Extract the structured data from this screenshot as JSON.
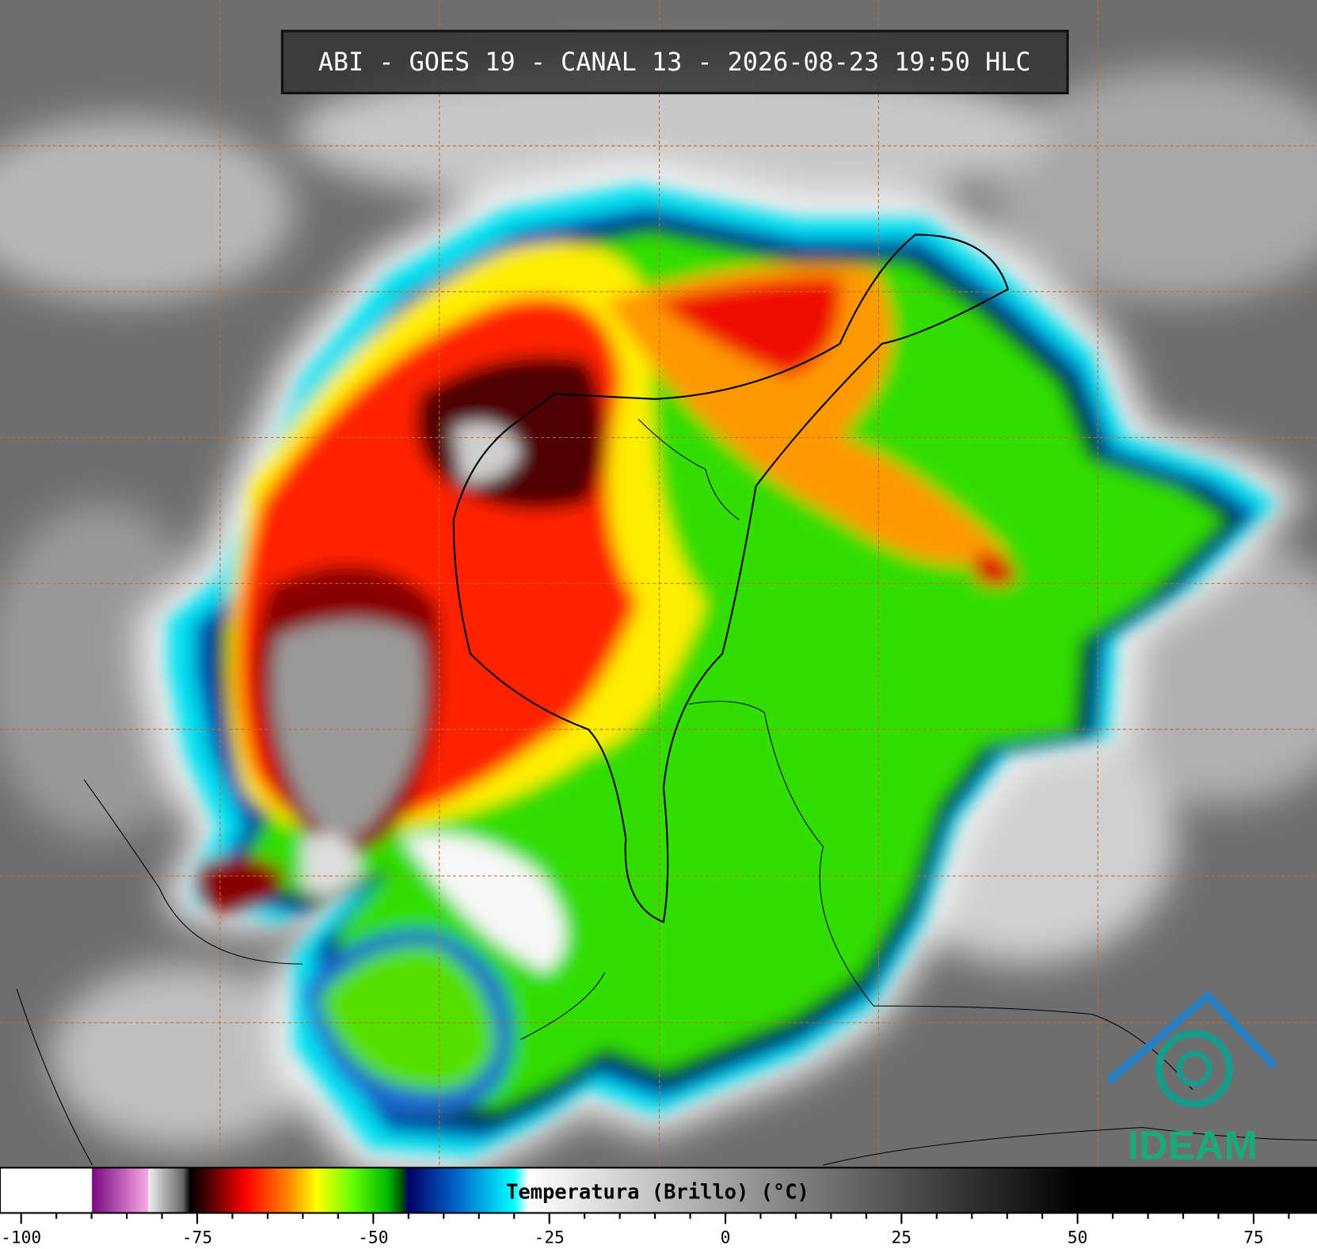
{
  "header": {
    "title": "ABI - GOES 19 - CANAL 13 - 2026-08-23 19:50 HLC"
  },
  "logo": {
    "text": "IDEAM"
  },
  "chart_data": {
    "type": "colorbar",
    "title": "Temperatura (Brillo) (°C)",
    "xlim": [
      -103,
      84
    ],
    "xticks": [
      -100,
      -75,
      -50,
      -25,
      0,
      25,
      50,
      75
    ],
    "xminorticks": [
      -95,
      -90,
      -85,
      -80,
      -70,
      -65,
      -60,
      -55,
      -45,
      -40,
      -35,
      -30,
      -20,
      -15,
      -10,
      -5,
      5,
      10,
      15,
      20,
      30,
      35,
      40,
      45,
      55,
      60,
      65,
      70,
      80
    ],
    "colormap": [
      {
        "value": -103,
        "color": "#ffffff"
      },
      {
        "value": -90,
        "color": "#ffffff"
      },
      {
        "value": -89.9,
        "color": "#7a0a80"
      },
      {
        "value": -82,
        "color": "#f6a8e6"
      },
      {
        "value": -81.9,
        "color": "#eeeeee"
      },
      {
        "value": -77,
        "color": "#666666"
      },
      {
        "value": -76,
        "color": "#000000"
      },
      {
        "value": -73,
        "color": "#5a0000"
      },
      {
        "value": -68,
        "color": "#ff0000"
      },
      {
        "value": -62,
        "color": "#ff8800"
      },
      {
        "value": -58,
        "color": "#ffff00"
      },
      {
        "value": -53,
        "color": "#66ff00"
      },
      {
        "value": -48,
        "color": "#00bb00"
      },
      {
        "value": -46,
        "color": "#005500"
      },
      {
        "value": -45,
        "color": "#000066"
      },
      {
        "value": -38,
        "color": "#0066cc"
      },
      {
        "value": -30,
        "color": "#00ffff"
      },
      {
        "value": -28,
        "color": "#ffffff"
      },
      {
        "value": 10,
        "color": "#808080"
      },
      {
        "value": 50,
        "color": "#000000"
      },
      {
        "value": 84,
        "color": "#000000"
      }
    ]
  }
}
